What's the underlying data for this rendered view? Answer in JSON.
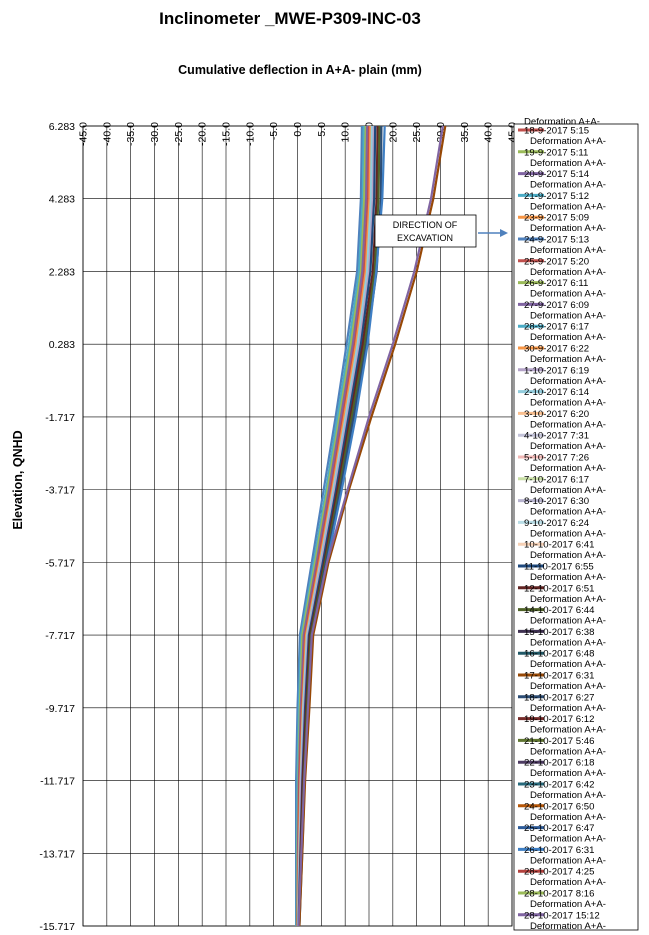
{
  "chart_data": {
    "type": "line",
    "title": "Inclinometer  _MWE-P309-INC-03",
    "xlabel": "Cumulative deflection in A+A- plain (mm)",
    "ylabel": "Elevation, QNHD",
    "xlim": [
      -45.0,
      45.0
    ],
    "ylim": [
      -15.717,
      6.283
    ],
    "x_ticks": [
      "-45.0",
      "-40.0",
      "-35.0",
      "-30.0",
      "-25.0",
      "-20.0",
      "-15.0",
      "-10.0",
      "-5.0",
      "0.0",
      "5.0",
      "10.0",
      "15.0",
      "20.0",
      "25.0",
      "30.0",
      "35.0",
      "40.0",
      "45.0"
    ],
    "y_ticks": [
      "6.283",
      "4.283",
      "2.283",
      "0.283",
      "-1.717",
      "-3.717",
      "-5.717",
      "-7.717",
      "-9.717",
      "-11.717",
      "-13.717",
      "-15.717"
    ],
    "grid": true,
    "legend_position": "right",
    "legend_entries": [
      {
        "lines": [
          "18-9-2017 5:15",
          "Deformation A+A-"
        ],
        "color": "#c0504d"
      },
      {
        "lines": [
          "19-9-2017 5:11",
          "Deformation A+A-"
        ],
        "color": "#9bbb59"
      },
      {
        "lines": [
          "20-9-2017 5:14",
          "Deformation A+A-"
        ],
        "color": "#8064a2"
      },
      {
        "lines": [
          "21-9-2017 5:12",
          "Deformation A+A-"
        ],
        "color": "#4bacc6"
      },
      {
        "lines": [
          "23-9-2017 5:09",
          "Deformation A+A-"
        ],
        "color": "#f79646"
      },
      {
        "lines": [
          "24-9-2017 5:13",
          "Deformation A+A-"
        ],
        "color": "#4f81bd"
      },
      {
        "lines": [
          "25-9-2017 5:20",
          "Deformation A+A-"
        ],
        "color": "#c0504d"
      },
      {
        "lines": [
          "26-9-2017 6:11",
          "Deformation A+A-"
        ],
        "color": "#9bbb59"
      },
      {
        "lines": [
          "27-9-2017 6:09",
          "Deformation A+A-"
        ],
        "color": "#8064a2"
      },
      {
        "lines": [
          "28-9-2017 6:17",
          "Deformation A+A-"
        ],
        "color": "#4bacc6"
      },
      {
        "lines": [
          "30-9-2017 6:22",
          "Deformation A+A-"
        ],
        "color": "#f79646"
      },
      {
        "lines": [
          "1-10-2017 6:19",
          "Deformation A+A-"
        ],
        "color": "#b3a2c7"
      },
      {
        "lines": [
          "2-10-2017 6:14",
          "Deformation A+A-"
        ],
        "color": "#93cddd"
      },
      {
        "lines": [
          "3-10-2017 6:20",
          "Deformation A+A-"
        ],
        "color": "#fac090"
      },
      {
        "lines": [
          "4-10-2017 7:31",
          "Deformation A+A-"
        ],
        "color": "#c3c3d9"
      },
      {
        "lines": [
          "5-10-2017 7:26",
          "Deformation A+A-"
        ],
        "color": "#f2b8b6"
      },
      {
        "lines": [
          "7-10-2017 6:17",
          "Deformation A+A-"
        ],
        "color": "#c9dfa6"
      },
      {
        "lines": [
          "8-10-2017 6:30",
          "Deformation A+A-"
        ],
        "color": "#b8b4cf"
      },
      {
        "lines": [
          "9-10-2017 6:24",
          "Deformation A+A-"
        ],
        "color": "#b9dde6"
      },
      {
        "lines": [
          "10-10-2017 6:41",
          "Deformation A+A-"
        ],
        "color": "#f5d0b5"
      },
      {
        "lines": [
          "11-10-2017 6:55",
          "Deformation A+A-"
        ],
        "color": "#1f497d"
      },
      {
        "lines": [
          "12-10-2017 6:51",
          "Deformation A+A-"
        ],
        "color": "#632523"
      },
      {
        "lines": [
          "14-10-2017 6:44",
          "Deformation A+A-"
        ],
        "color": "#4f6228"
      },
      {
        "lines": [
          "15-10-2017 6:38",
          "Deformation A+A-"
        ],
        "color": "#3f3151"
      },
      {
        "lines": [
          "16-10-2017 6:48",
          "Deformation A+A-"
        ],
        "color": "#205867"
      },
      {
        "lines": [
          "17-10-2017 6:31",
          "Deformation A+A-"
        ],
        "color": "#974806"
      },
      {
        "lines": [
          "18-10-2017 6:27",
          "Deformation A+A-"
        ],
        "color": "#2c4d75"
      },
      {
        "lines": [
          "19-10-2017 6:12",
          "Deformation A+A-"
        ],
        "color": "#772c2a"
      },
      {
        "lines": [
          "21-10-2017 5:46",
          "Deformation A+A-"
        ],
        "color": "#5f7530"
      },
      {
        "lines": [
          "22-10-2017 6:18",
          "Deformation A+A-"
        ],
        "color": "#4d3b62"
      },
      {
        "lines": [
          "23-10-2017 6:42",
          "Deformation A+A-"
        ],
        "color": "#276a7c"
      },
      {
        "lines": [
          "24-10-2017 6:50",
          "Deformation A+A-"
        ],
        "color": "#b65708"
      },
      {
        "lines": [
          "25-10-2017 6:47",
          "Deformation A+A-"
        ],
        "color": "#2e5c9a"
      },
      {
        "lines": [
          "26-10-2017 6:31",
          "Deformation A+A-"
        ],
        "color": "#3f7fc4"
      },
      {
        "lines": [
          "28-10-2017 4:25",
          "Deformation A+A-"
        ],
        "color": "#b3413d"
      },
      {
        "lines": [
          "28-10-2017 8:16",
          "Deformation A+A-"
        ],
        "color": "#9bbb59"
      },
      {
        "lines": [
          "28-10-2017 15:12",
          "Deformation A+A-"
        ],
        "color": "#8064a2"
      }
    ],
    "legend_top_partial": "Deformation A+A-",
    "annotation": {
      "lines": [
        "DIRECTION  OF",
        "EXCAVATION"
      ]
    },
    "series": [
      {
        "color": "#4f81bd",
        "x": [
          13.5,
          13.3,
          12.5,
          10.3,
          8.0,
          5.5,
          3.0,
          0.5,
          0.0,
          -0.3,
          -0.3,
          -0.3
        ],
        "y": [
          6.283,
          4.283,
          2.283,
          0.283,
          -1.717,
          -3.717,
          -5.717,
          -7.717,
          -9.717,
          -11.717,
          -13.717,
          -15.717
        ]
      },
      {
        "color": "#4bacc6",
        "x": [
          13.9,
          13.7,
          12.9,
          10.8,
          8.4,
          6.0,
          3.4,
          0.8,
          0.3,
          0.0,
          -0.1,
          -0.2
        ],
        "y": [
          6.283,
          4.283,
          2.283,
          0.283,
          -1.717,
          -3.717,
          -5.717,
          -7.717,
          -9.717,
          -11.717,
          -13.717,
          -15.717
        ]
      },
      {
        "color": "#9bbb59",
        "x": [
          14.3,
          14.0,
          13.3,
          11.2,
          8.8,
          6.3,
          3.7,
          1.0,
          0.5,
          0.2,
          0.0,
          -0.1
        ],
        "y": [
          6.283,
          4.283,
          2.283,
          0.283,
          -1.717,
          -3.717,
          -5.717,
          -7.717,
          -9.717,
          -11.717,
          -13.717,
          -15.717
        ]
      },
      {
        "color": "#8064a2",
        "x": [
          14.6,
          14.4,
          13.6,
          11.6,
          9.1,
          6.6,
          4.0,
          1.3,
          0.7,
          0.3,
          0.1,
          0.0
        ],
        "y": [
          6.283,
          4.283,
          2.283,
          0.283,
          -1.717,
          -3.717,
          -5.717,
          -7.717,
          -9.717,
          -11.717,
          -13.717,
          -15.717
        ]
      },
      {
        "color": "#c0504d",
        "x": [
          15.0,
          14.8,
          14.0,
          12.0,
          9.5,
          7.0,
          4.3,
          1.6,
          0.9,
          0.4,
          0.2,
          0.0
        ],
        "y": [
          6.283,
          4.283,
          2.283,
          0.283,
          -1.717,
          -3.717,
          -5.717,
          -7.717,
          -9.717,
          -11.717,
          -13.717,
          -15.717
        ]
      },
      {
        "color": "#f79646",
        "x": [
          15.3,
          15.1,
          14.3,
          12.3,
          9.8,
          7.3,
          4.6,
          1.8,
          1.1,
          0.6,
          0.3,
          0.1
        ],
        "y": [
          6.283,
          4.283,
          2.283,
          0.283,
          -1.717,
          -3.717,
          -5.717,
          -7.717,
          -9.717,
          -11.717,
          -13.717,
          -15.717
        ]
      },
      {
        "color": "#93cddd",
        "x": [
          15.6,
          15.4,
          14.6,
          12.6,
          10.1,
          7.5,
          4.8,
          2.0,
          1.2,
          0.7,
          0.4,
          0.1
        ],
        "y": [
          6.283,
          4.283,
          2.283,
          0.283,
          -1.717,
          -3.717,
          -5.717,
          -7.717,
          -9.717,
          -11.717,
          -13.717,
          -15.717
        ]
      },
      {
        "color": "#b3a2c7",
        "x": [
          16.0,
          15.8,
          15.0,
          13.0,
          10.4,
          7.8,
          5.0,
          2.2,
          1.4,
          0.8,
          0.5,
          0.2
        ],
        "y": [
          6.283,
          4.283,
          2.283,
          0.283,
          -1.717,
          -3.717,
          -5.717,
          -7.717,
          -9.717,
          -11.717,
          -13.717,
          -15.717
        ]
      },
      {
        "color": "#1f497d",
        "x": [
          16.3,
          16.1,
          15.3,
          13.3,
          10.7,
          8.1,
          5.3,
          2.4,
          1.6,
          1.0,
          0.6,
          0.2
        ],
        "y": [
          6.283,
          4.283,
          2.283,
          0.283,
          -1.717,
          -3.717,
          -5.717,
          -7.717,
          -9.717,
          -11.717,
          -13.717,
          -15.717
        ]
      },
      {
        "color": "#632523",
        "x": [
          16.8,
          16.6,
          15.8,
          13.7,
          11.1,
          8.4,
          5.6,
          2.6,
          1.8,
          1.1,
          0.7,
          0.3
        ],
        "y": [
          6.283,
          4.283,
          2.283,
          0.283,
          -1.717,
          -3.717,
          -5.717,
          -7.717,
          -9.717,
          -11.717,
          -13.717,
          -15.717
        ]
      },
      {
        "color": "#4f6228",
        "x": [
          17.2,
          17.0,
          16.2,
          14.1,
          11.4,
          8.7,
          5.8,
          2.8,
          2.0,
          1.3,
          0.8,
          0.3
        ],
        "y": [
          6.283,
          4.283,
          2.283,
          0.283,
          -1.717,
          -3.717,
          -5.717,
          -7.717,
          -9.717,
          -11.717,
          -13.717,
          -15.717
        ]
      },
      {
        "color": "#2c4d75",
        "x": [
          17.6,
          17.5,
          16.6,
          14.5,
          11.8,
          9.0,
          6.0,
          3.0,
          2.2,
          1.4,
          0.9,
          0.4
        ],
        "y": [
          6.283,
          4.283,
          2.283,
          0.283,
          -1.717,
          -3.717,
          -5.717,
          -7.717,
          -9.717,
          -11.717,
          -13.717,
          -15.717
        ]
      },
      {
        "color": "#3f7fc4",
        "x": [
          18.3,
          17.8,
          16.5,
          14.7,
          12.2,
          9.3,
          6.2,
          3.2,
          2.4,
          1.5,
          1.0,
          0.4
        ],
        "y": [
          6.283,
          4.283,
          2.283,
          0.283,
          -1.717,
          -3.717,
          -5.717,
          -7.717,
          -9.717,
          -11.717,
          -13.717,
          -15.717
        ]
      },
      {
        "color": "#974806",
        "x": [
          31.0,
          28.5,
          25.0,
          20.5,
          15.5,
          10.8,
          6.5,
          3.3,
          2.5,
          1.6,
          1.0,
          0.4
        ],
        "y": [
          6.283,
          4.283,
          2.283,
          0.283,
          -1.717,
          -3.717,
          -5.717,
          -7.717,
          -9.717,
          -11.717,
          -13.717,
          -15.717
        ]
      },
      {
        "color": "#8064a2",
        "x": [
          30.5,
          28.0,
          24.5,
          20.0,
          15.0,
          10.5,
          6.2,
          3.0,
          2.2,
          1.4,
          0.8,
          0.2
        ],
        "y": [
          6.283,
          4.283,
          2.283,
          0.283,
          -1.717,
          -3.717,
          -5.717,
          -7.717,
          -9.717,
          -11.717,
          -13.717,
          -15.717
        ]
      }
    ]
  }
}
